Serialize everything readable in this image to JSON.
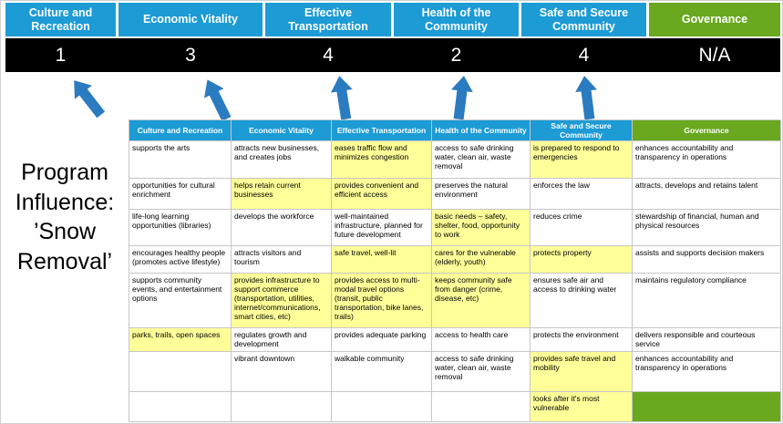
{
  "colors": {
    "blue": "#1D9BD5",
    "green": "#69A81F",
    "yellow": "#FFFF99",
    "white": "#FFFFFF",
    "score_bar_bg": "#000000",
    "arrow": "#2B7BC0"
  },
  "title": {
    "lines": [
      "Program",
      "Influence:",
      "’Snow",
      "Removal’"
    ]
  },
  "scoreboard": {
    "columns": [
      {
        "label": "Culture and Recreation",
        "score": "1",
        "color": "blue"
      },
      {
        "label": "Economic Vitality",
        "score": "3",
        "color": "blue"
      },
      {
        "label": "Effective Transportation",
        "score": "4",
        "color": "blue"
      },
      {
        "label": "Health of the Community",
        "score": "2",
        "color": "blue"
      },
      {
        "label": "Safe and Secure Community",
        "score": "4",
        "color": "blue"
      },
      {
        "label": "Governance",
        "score": "N/A",
        "color": "green"
      }
    ]
  },
  "matrix": {
    "headers": [
      {
        "label": "Culture and Recreation",
        "color": "blue"
      },
      {
        "label": "Economic Vitality",
        "color": "blue"
      },
      {
        "label": "Effective Transportation",
        "color": "blue"
      },
      {
        "label": "Health of the Community",
        "color": "blue"
      },
      {
        "label": "Safe and Secure Community",
        "color": "blue"
      },
      {
        "label": "Governance",
        "color": "green"
      }
    ],
    "rows": [
      [
        {
          "t": "supports the arts"
        },
        {
          "t": "attracts new businesses, and creates jobs"
        },
        {
          "t": "eases traffic flow and minimizes congestion",
          "bg": "yellow"
        },
        {
          "t": "access to safe drinking water, clean air, waste removal"
        },
        {
          "t": "is prepared to respond to emergencies",
          "bg": "yellow"
        },
        {
          "t": "enhances accountability and transparency in operations"
        }
      ],
      [
        {
          "t": "opportunities for cultural enrichment"
        },
        {
          "t": "helps retain current businesses",
          "bg": "yellow"
        },
        {
          "t": "provides convenient and efficient access",
          "bg": "yellow"
        },
        {
          "t": "preserves the natural environment"
        },
        {
          "t": "enforces the law"
        },
        {
          "t": "attracts, develops and retains talent"
        }
      ],
      [
        {
          "t": "life-long learning opportunities (libraries)"
        },
        {
          "t": "develops the workforce"
        },
        {
          "t": "well-maintained infrastructure, planned for future development"
        },
        {
          "t": "basic needs – safety, shelter, food, opportunity to work",
          "bg": "yellow"
        },
        {
          "t": "reduces crime"
        },
        {
          "t": "stewardship of financial, human and physical resources"
        }
      ],
      [
        {
          "t": "encourages healthy people (promotes active lifestyle)"
        },
        {
          "t": "attracts visitors and tourism"
        },
        {
          "t": "safe travel, well-lit",
          "bg": "yellow"
        },
        {
          "t": "cares for the vulnerable (elderly, youth)",
          "bg": "yellow"
        },
        {
          "t": "protects property",
          "bg": "yellow"
        },
        {
          "t": "assists and supports decision makers"
        }
      ],
      [
        {
          "t": "supports community events, and entertainment options"
        },
        {
          "t": "provides infrastructure to support commerce (transportation, utilities, internet/communications, smart cities, etc)",
          "bg": "yellow"
        },
        {
          "t": "provides access to multi-modal travel options (transit, public transportation, bike lanes, trails)",
          "bg": "yellow"
        },
        {
          "t": "keeps community safe from danger (crime, disease, etc)",
          "bg": "yellow"
        },
        {
          "t": "ensures safe air and access to drinking water"
        },
        {
          "t": "maintains regulatory compliance"
        }
      ],
      [
        {
          "t": "parks, trails, open spaces",
          "bg": "yellow"
        },
        {
          "t": "regulates growth and development"
        },
        {
          "t": "provides adequate parking"
        },
        {
          "t": "access to health care"
        },
        {
          "t": "protects the environment"
        },
        {
          "t": "delivers responsible and courteous service"
        }
      ],
      [
        {
          "t": ""
        },
        {
          "t": "vibrant downtown"
        },
        {
          "t": "walkable community"
        },
        {
          "t": "access to safe drinking water, clean air, waste removal"
        },
        {
          "t": "provides safe travel and mobility",
          "bg": "yellow"
        },
        {
          "t": "enhances accountability and transparency in operations"
        }
      ],
      [
        {
          "t": ""
        },
        {
          "t": ""
        },
        {
          "t": ""
        },
        {
          "t": ""
        },
        {
          "t": "looks after it's most vulnerable",
          "bg": "yellow"
        },
        {
          "t": "",
          "bg": "green"
        }
      ]
    ]
  }
}
